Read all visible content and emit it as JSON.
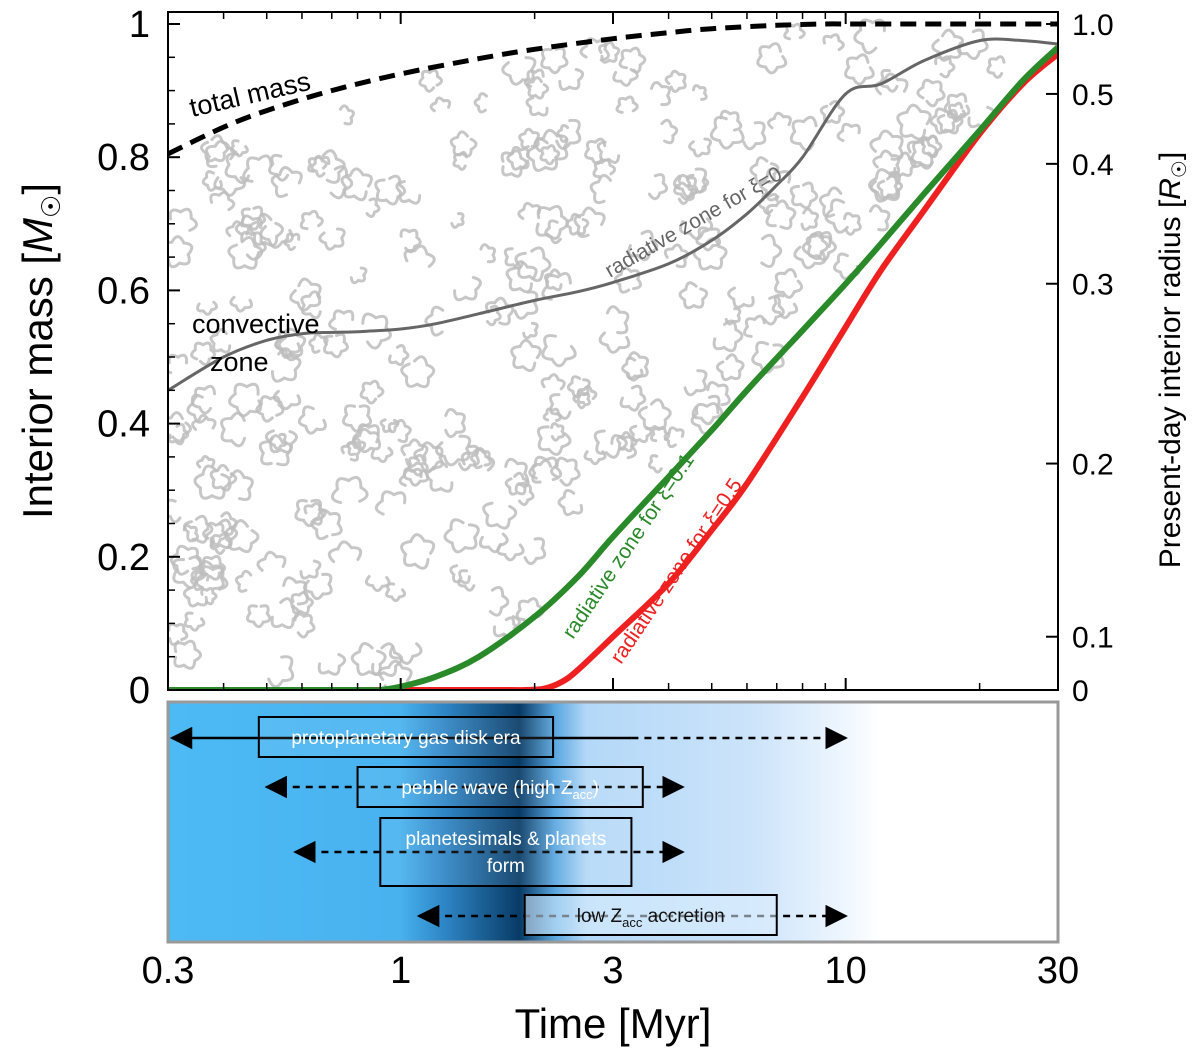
{
  "colors": {
    "convective_hatch": "#bdbdbd",
    "total_mass": "#000000",
    "xi0": "#666666",
    "xi01": "#2a8a2a",
    "xi05": "#ee2020",
    "disk_bright": "#4dbaf5",
    "disk_dark": "#0a3d66",
    "disk_fade": "#cfe6fb"
  },
  "chart_data": {
    "type": "line",
    "xscale": "log",
    "xlim": [
      0.3,
      30
    ],
    "ylim": [
      0,
      1
    ],
    "xlabel": "Time [Myr]",
    "ylabel": "Interior mass [M⊙]",
    "y2label": "Present-day interior radius [R⊙]",
    "xticks": [
      "0.3",
      "1",
      "3",
      "10",
      "30"
    ],
    "yticks": [
      "0",
      "0.2",
      "0.4",
      "0.6",
      "0.8",
      "1"
    ],
    "y2ticks": [
      {
        "mass": 0,
        "label": "0"
      },
      {
        "mass": 0.08,
        "label": "0.1"
      },
      {
        "mass": 0.34,
        "label": "0.2"
      },
      {
        "mass": 0.61,
        "label": "0.3"
      },
      {
        "mass": 0.79,
        "label": "0.4"
      },
      {
        "mass": 0.895,
        "label": "0.5"
      },
      {
        "mass": 1.0,
        "label": "1.0"
      }
    ],
    "series": [
      {
        "key": "total",
        "style": "dashed",
        "x": [
          0.3,
          0.4,
          0.5,
          0.7,
          1.0,
          1.5,
          2.0,
          3.0,
          4.0,
          5.0,
          7.0,
          9.0,
          10.0,
          15.0,
          20.0,
          30.0
        ],
        "y": [
          0.805,
          0.845,
          0.87,
          0.9,
          0.925,
          0.948,
          0.962,
          0.978,
          0.987,
          0.993,
          0.998,
          1.0,
          1.0,
          1.0,
          1.0,
          1.0
        ]
      },
      {
        "key": "xi0",
        "x": [
          0.3,
          0.4,
          0.5,
          0.6,
          0.7,
          0.8,
          1.0,
          1.2,
          1.5,
          2.0,
          2.5,
          3.0,
          4.0,
          5.0,
          6.0,
          7.0,
          8.0,
          10.0,
          12.0,
          15.0,
          20.0,
          25.0,
          30.0
        ],
        "y": [
          0.45,
          0.5,
          0.525,
          0.535,
          0.537,
          0.538,
          0.542,
          0.55,
          0.565,
          0.585,
          0.598,
          0.612,
          0.64,
          0.675,
          0.715,
          0.758,
          0.8,
          0.895,
          0.91,
          0.945,
          0.975,
          0.975,
          0.97
        ]
      },
      {
        "key": "xi01",
        "x": [
          0.3,
          0.8,
          0.9,
          1.0,
          1.2,
          1.5,
          2.0,
          2.5,
          3.0,
          4.0,
          5.0,
          6.0,
          8.0,
          10.0,
          12.0,
          15.0,
          20.0,
          25.0,
          30.0
        ],
        "y": [
          0.0,
          0.0,
          0.0,
          0.005,
          0.02,
          0.05,
          0.11,
          0.17,
          0.23,
          0.32,
          0.39,
          0.45,
          0.54,
          0.61,
          0.67,
          0.745,
          0.84,
          0.915,
          0.965
        ]
      },
      {
        "key": "xi05",
        "x": [
          0.3,
          1.5,
          1.9,
          2.1,
          2.3,
          2.5,
          3.0,
          4.0,
          5.0,
          6.0,
          8.0,
          10.0,
          12.0,
          15.0,
          20.0,
          25.0,
          30.0
        ],
        "y": [
          0.0,
          0.0,
          0.0,
          0.002,
          0.012,
          0.03,
          0.08,
          0.16,
          0.24,
          0.31,
          0.44,
          0.545,
          0.63,
          0.72,
          0.835,
          0.91,
          0.955
        ]
      }
    ],
    "annotations": {
      "total_mass": "total mass",
      "convective_1": "convective",
      "convective_2": "zone",
      "xi0_label": "radiative zone for ξ=0",
      "xi01_label": "radiative zone for ξ=0.1",
      "xi05_label": "radiative zone for ξ=0.5"
    },
    "timeline": [
      {
        "label": "protoplanetary gas disk era",
        "solid_from": 0.3,
        "solid_to": 3.3,
        "dash_to": 10.0,
        "dash_from": 0.3,
        "box_from": 0.48,
        "box_to": 2.2
      },
      {
        "label": "pebble wave (high Z",
        "sub": "acc",
        "suffix": ")",
        "dash_from": 0.5,
        "dash_to": 4.3,
        "box_from": 0.8,
        "box_to": 3.5
      },
      {
        "label_lines": [
          "planetesimals & planets",
          "form"
        ],
        "dash_from": 0.58,
        "dash_to": 4.3,
        "box_from": 0.9,
        "box_to": 3.3
      },
      {
        "label": "low Z",
        "sub": "acc",
        "suffix": " accretion",
        "dash_from": 1.1,
        "dash_to": 10.0,
        "box_from": 1.9,
        "box_to": 7.0
      }
    ]
  }
}
